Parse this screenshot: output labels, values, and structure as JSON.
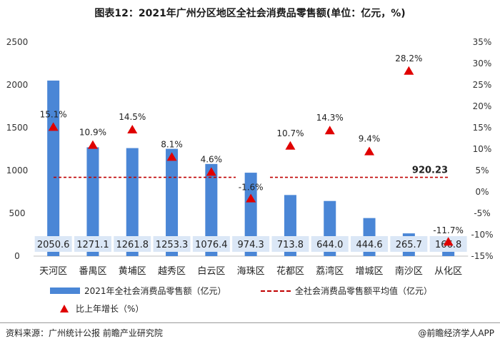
{
  "title": "图表12：2021年广州分区地区全社会消费品零售额(单位：亿元，%)",
  "chart_data": {
    "type": "bar",
    "categories": [
      "天河区",
      "番禺区",
      "黄埔区",
      "越秀区",
      "白云区",
      "海珠区",
      "花都区",
      "荔湾区",
      "增城区",
      "南沙区",
      "从化区"
    ],
    "values": [
      2050.6,
      1271.1,
      1261.8,
      1253.3,
      1076.4,
      974.3,
      713.8,
      644.0,
      444.6,
      265.7,
      166.8
    ],
    "value_labels": [
      "2050.6",
      "1271.1",
      "1261.8",
      "1253.3",
      "1076.4",
      "974.3",
      "713.8",
      "644.0",
      "444.6",
      "265.7",
      "166.8"
    ],
    "growth": [
      15.1,
      10.9,
      14.5,
      8.1,
      4.6,
      -1.6,
      10.7,
      14.3,
      9.4,
      28.2,
      -11.7
    ],
    "growth_labels": [
      "15.1%",
      "10.9%",
      "14.5%",
      "8.1%",
      "4.6%",
      "-1.6%",
      "10.7%",
      "14.3%",
      "9.4%",
      "28.2%",
      "-11.7%"
    ],
    "average": 920.23,
    "average_label": "920.23",
    "ylim_left": [
      0,
      2500
    ],
    "ylim_right": [
      -15,
      35
    ],
    "left_ticks": [
      "0",
      "500",
      "1000",
      "1500",
      "2000",
      "2500"
    ],
    "right_ticks": [
      "-15%",
      "-10%",
      "-5%",
      "0%",
      "5%",
      "10%",
      "15%",
      "20%",
      "25%",
      "30%",
      "35%"
    ],
    "colors": {
      "bar": "#4a86d6",
      "average_line": "#c00000",
      "marker": "#e00000",
      "label_box": "#dbe7f6"
    },
    "grid": false
  },
  "legend": {
    "bar": "2021年全社会消费品零售额（亿元）",
    "line": "全社会消费品零售额平均值（亿元）",
    "marker": "比上年增长（%）"
  },
  "footer": {
    "source": "资料来源：广州统计公报 前瞻产业研究院",
    "brand": "@前瞻经济学人APP"
  }
}
